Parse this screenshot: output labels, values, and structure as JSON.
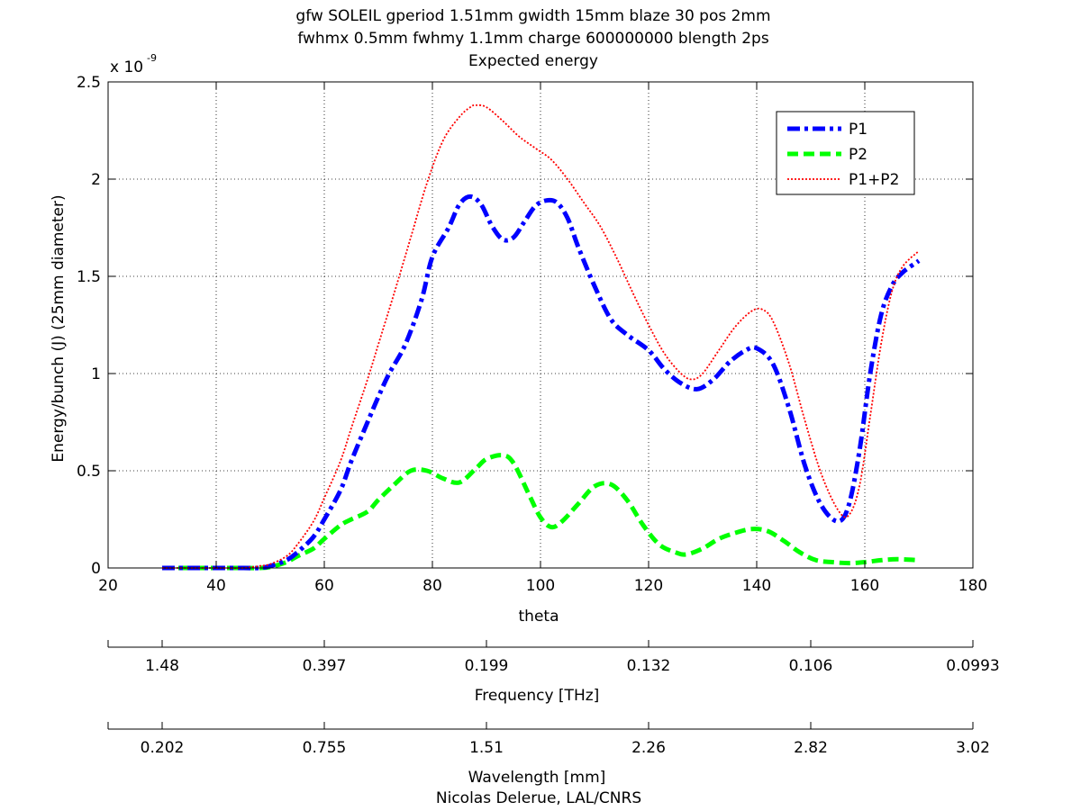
{
  "chart_data": {
    "type": "line",
    "title_lines": [
      "gfw SOLEIL gperiod 1.51mm gwidth 15mm blaze 30 pos 2mm",
      "fwhmx 0.5mm fwhmy 1.1mm charge 600000000 blength 2ps",
      "Expected energy"
    ],
    "xlabel": "theta",
    "ylabel": "Energy/bunch (J) (25mm diameter)",
    "y_exponent_label": "x 10",
    "y_exponent_power": "-9",
    "xlim": [
      20,
      180
    ],
    "ylim": [
      0,
      2.5
    ],
    "x_ticks": [
      20,
      40,
      60,
      80,
      100,
      120,
      140,
      160,
      180
    ],
    "x_tick_labels": [
      "20",
      "40",
      "60",
      "80",
      "100",
      "120",
      "140",
      "160",
      "180"
    ],
    "y_ticks": [
      0,
      0.5,
      1,
      1.5,
      2,
      2.5
    ],
    "y_tick_labels": [
      "0",
      "0.5",
      "1",
      "1.5",
      "2",
      "2.5"
    ],
    "grid": true,
    "legend_position": "top-right",
    "series": [
      {
        "name": "P1",
        "color": "#0000ff",
        "style": "dash-dot",
        "x": [
          30,
          35,
          40,
          45,
          48,
          50,
          53,
          55,
          58,
          60,
          63,
          65,
          68,
          70,
          72,
          75,
          78,
          80,
          83,
          85,
          87,
          89,
          91,
          93,
          95,
          97,
          99,
          101,
          103,
          105,
          107,
          110,
          113,
          116,
          120,
          123,
          126,
          129,
          132,
          135,
          138,
          140,
          143,
          146,
          149,
          152,
          155,
          157,
          159,
          161,
          163,
          165,
          167,
          170
        ],
        "y": [
          0,
          0,
          0,
          0,
          0,
          0.01,
          0.04,
          0.08,
          0.16,
          0.25,
          0.4,
          0.55,
          0.75,
          0.88,
          1.0,
          1.15,
          1.38,
          1.6,
          1.75,
          1.87,
          1.91,
          1.87,
          1.76,
          1.69,
          1.7,
          1.78,
          1.86,
          1.89,
          1.88,
          1.8,
          1.65,
          1.45,
          1.28,
          1.2,
          1.12,
          1.02,
          0.95,
          0.92,
          0.97,
          1.06,
          1.12,
          1.13,
          1.05,
          0.82,
          0.52,
          0.32,
          0.24,
          0.32,
          0.6,
          1.0,
          1.3,
          1.45,
          1.52,
          1.58
        ]
      },
      {
        "name": "P2",
        "color": "#00ff00",
        "style": "dashed",
        "x": [
          30,
          35,
          40,
          45,
          48,
          50,
          53,
          55,
          58,
          60,
          63,
          65,
          68,
          70,
          73,
          76,
          79,
          82,
          85,
          88,
          90,
          93,
          95,
          98,
          100,
          102,
          104,
          107,
          110,
          113,
          116,
          119,
          122,
          125,
          127,
          130,
          133,
          136,
          139,
          142,
          145,
          148,
          151,
          154,
          157,
          160,
          163,
          166,
          170
        ],
        "y": [
          0,
          0,
          0,
          0,
          0,
          0.005,
          0.03,
          0.06,
          0.1,
          0.15,
          0.22,
          0.25,
          0.29,
          0.35,
          0.43,
          0.5,
          0.5,
          0.46,
          0.44,
          0.51,
          0.56,
          0.58,
          0.54,
          0.37,
          0.26,
          0.21,
          0.24,
          0.33,
          0.42,
          0.43,
          0.35,
          0.22,
          0.12,
          0.08,
          0.07,
          0.1,
          0.15,
          0.18,
          0.2,
          0.19,
          0.14,
          0.08,
          0.04,
          0.03,
          0.025,
          0.03,
          0.04,
          0.045,
          0.04
        ]
      },
      {
        "name": "P1+P2",
        "color": "#ff0000",
        "style": "dotted",
        "x": [
          30,
          35,
          40,
          45,
          48,
          50,
          53,
          55,
          58,
          60,
          63,
          65,
          68,
          70,
          73,
          76,
          79,
          82,
          85,
          87,
          88,
          90,
          93,
          96,
          99,
          102,
          105,
          108,
          111,
          114,
          117,
          120,
          123,
          126,
          128,
          130,
          133,
          136,
          139,
          141,
          143,
          146,
          149,
          152,
          155,
          157,
          159,
          161,
          163,
          165,
          167,
          170
        ],
        "y": [
          0,
          0,
          0,
          0,
          0.01,
          0.02,
          0.06,
          0.12,
          0.24,
          0.36,
          0.55,
          0.72,
          0.97,
          1.15,
          1.42,
          1.7,
          1.98,
          2.2,
          2.32,
          2.37,
          2.38,
          2.37,
          2.3,
          2.22,
          2.16,
          2.1,
          2.0,
          1.88,
          1.76,
          1.6,
          1.42,
          1.25,
          1.1,
          1.0,
          0.97,
          1.0,
          1.12,
          1.24,
          1.32,
          1.33,
          1.27,
          1.05,
          0.75,
          0.48,
          0.3,
          0.27,
          0.42,
          0.78,
          1.15,
          1.42,
          1.55,
          1.63
        ]
      }
    ],
    "secondary_axes": [
      {
        "label": "Frequency [THz]",
        "tick_labels": [
          "1.48",
          "0.397",
          "0.199",
          "0.132",
          "0.106",
          "0.0993"
        ]
      },
      {
        "label": "Wavelength [mm]",
        "tick_labels": [
          "0.202",
          "0.755",
          "1.51",
          "2.26",
          "2.82",
          "3.02"
        ]
      }
    ],
    "footer": "Nicolas Delerue, LAL/CNRS"
  }
}
